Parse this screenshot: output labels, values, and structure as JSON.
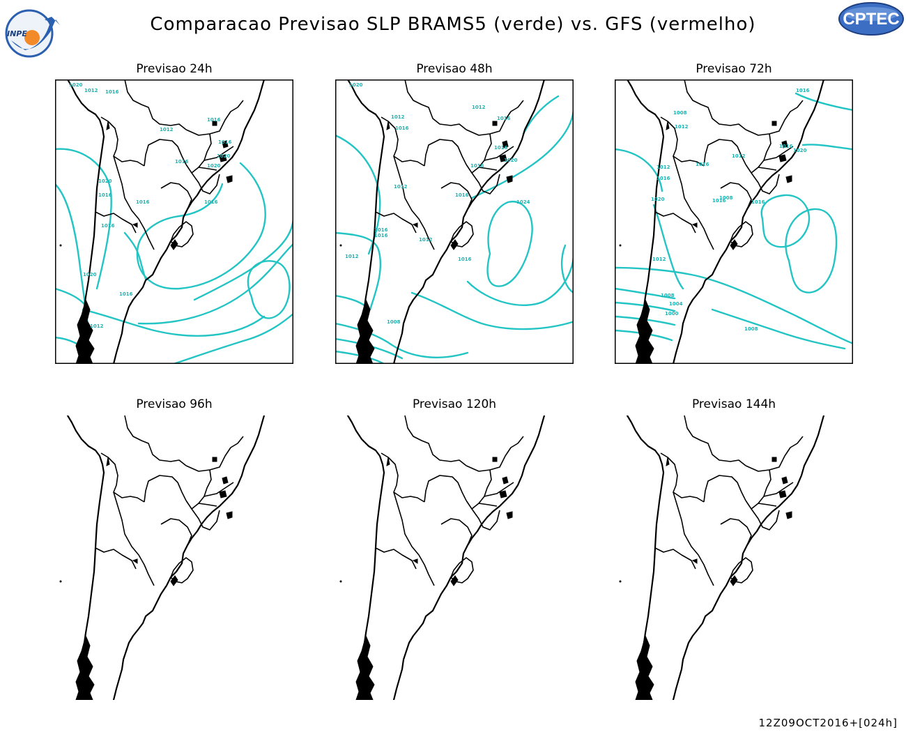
{
  "header": {
    "title": "Comparacao Previsao SLP BRAMS5 (verde) vs. GFS (vermelho)",
    "left_logo": {
      "text": "INPE",
      "icon": "inpe-logo"
    },
    "right_logo": {
      "text": "CPTEC",
      "icon": "cptec-logo"
    }
  },
  "panels": [
    {
      "title": "Previsao 24h",
      "has_contours": true,
      "labels": [
        "1020",
        "1012",
        "1016",
        "1012",
        "1016",
        "1016",
        "1016",
        "1020",
        "1020",
        "1016",
        "1016",
        "1020",
        "1016",
        "1016",
        "1020",
        "1016",
        "1012"
      ]
    },
    {
      "title": "Previsao 48h",
      "has_contours": true,
      "labels": [
        "1020",
        "1012",
        "1016",
        "1012",
        "1016",
        "1016",
        "1020",
        "1016",
        "1016",
        "1012",
        "1012",
        "1016",
        "1016",
        "1024",
        "1016",
        "1012",
        "1008"
      ]
    },
    {
      "title": "Previsao 72h",
      "has_contours": true,
      "labels": [
        "1016",
        "1008",
        "1012",
        "1016",
        "1012",
        "1016",
        "1020",
        "1016",
        "1016",
        "1012",
        "1008",
        "1016",
        "1012",
        "1008",
        "1004",
        "1000",
        "1008",
        "1020"
      ]
    },
    {
      "title": "Previsao 96h",
      "has_contours": false,
      "labels": []
    },
    {
      "title": "Previsao 120h",
      "has_contours": false,
      "labels": []
    },
    {
      "title": "Previsao 144h",
      "has_contours": false,
      "labels": []
    }
  ],
  "colors": {
    "brams_contour": "#23c4c4",
    "coastline": "#000000"
  },
  "footer": {
    "timestamp": "12Z09OCT2016+[024h]"
  }
}
